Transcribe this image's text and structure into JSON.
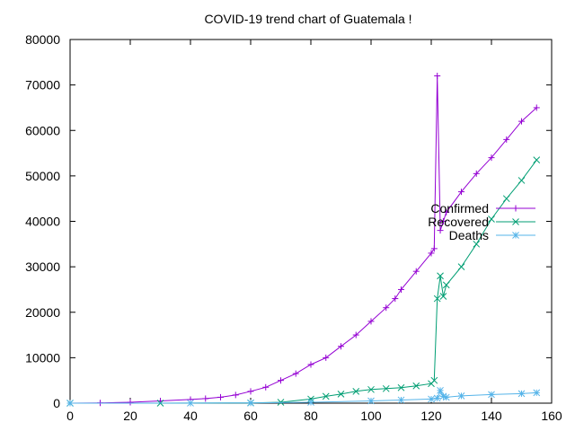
{
  "chart_data": {
    "type": "line",
    "title": "COVID-19 trend chart of Guatemala !",
    "xlabel": "",
    "ylabel": "",
    "xlim": [
      0,
      160
    ],
    "ylim": [
      0,
      80000
    ],
    "xticks": [
      "0",
      "20",
      "40",
      "60",
      "80",
      "100",
      "120",
      "140",
      "160"
    ],
    "yticks": [
      "0",
      "10000",
      "20000",
      "30000",
      "40000",
      "50000",
      "60000",
      "70000",
      "80000"
    ],
    "grid": false,
    "legend_position": "right",
    "series": [
      {
        "name": "Confirmed",
        "color": "#9400d3",
        "marker": "plus",
        "x": [
          0,
          10,
          20,
          30,
          40,
          45,
          50,
          55,
          60,
          65,
          70,
          75,
          80,
          85,
          90,
          95,
          100,
          105,
          108,
          110,
          115,
          120,
          121,
          122,
          123,
          124,
          125,
          130,
          135,
          140,
          145,
          150,
          155
        ],
        "y": [
          0,
          50,
          200,
          500,
          800,
          1000,
          1300,
          1800,
          2600,
          3500,
          5000,
          6500,
          8500,
          10000,
          12500,
          15000,
          18000,
          21000,
          23000,
          25000,
          29000,
          33000,
          34000,
          72000,
          38000,
          40000,
          42000,
          46500,
          50500,
          54000,
          58000,
          62000,
          65000
        ]
      },
      {
        "name": "Recovered",
        "color": "#009e73",
        "marker": "cross",
        "x": [
          0,
          30,
          60,
          70,
          80,
          85,
          90,
          95,
          100,
          105,
          110,
          115,
          120,
          121,
          122,
          123,
          124,
          125,
          130,
          135,
          140,
          145,
          150,
          155
        ],
        "y": [
          0,
          0,
          50,
          200,
          900,
          1500,
          2000,
          2600,
          3000,
          3200,
          3400,
          3800,
          4300,
          5000,
          23000,
          28000,
          23500,
          26000,
          30000,
          35000,
          40500,
          45000,
          49000,
          53500
        ]
      },
      {
        "name": "Deaths",
        "color": "#56b4e9",
        "marker": "star",
        "x": [
          0,
          40,
          60,
          80,
          100,
          110,
          120,
          122,
          123,
          124,
          125,
          130,
          140,
          150,
          155
        ],
        "y": [
          0,
          10,
          50,
          200,
          500,
          700,
          900,
          1100,
          2800,
          1500,
          1300,
          1600,
          1900,
          2100,
          2300
        ]
      }
    ]
  }
}
